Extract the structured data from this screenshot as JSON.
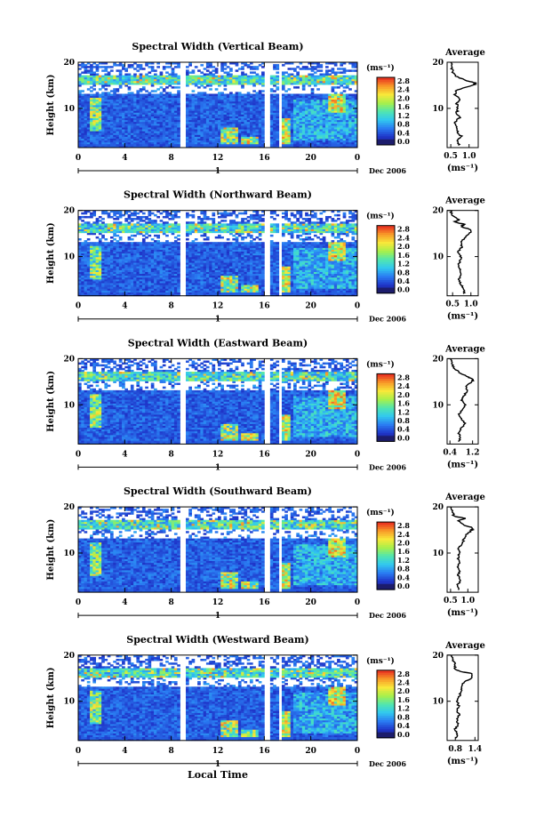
{
  "panels": [
    {
      "title": "Spectral Width (Vertical Beam)",
      "avg_xticks": [
        "0.5",
        "1.0"
      ],
      "avg_xrange": [
        0.4,
        1.25
      ],
      "profile_anchors": [
        [
          2,
          0.72
        ],
        [
          3,
          0.7
        ],
        [
          4,
          0.78
        ],
        [
          5,
          0.68
        ],
        [
          6,
          0.64
        ],
        [
          7,
          0.62
        ],
        [
          8,
          0.74
        ],
        [
          9,
          0.66
        ],
        [
          10,
          0.7
        ],
        [
          11,
          0.66
        ],
        [
          12,
          0.74
        ],
        [
          13,
          0.62
        ],
        [
          14,
          0.66
        ],
        [
          15,
          1.12
        ],
        [
          15.5,
          1.18
        ],
        [
          16,
          0.95
        ],
        [
          17,
          0.62
        ],
        [
          18,
          0.55
        ],
        [
          19,
          0.52
        ],
        [
          20,
          0.5
        ]
      ],
      "seed": 11
    },
    {
      "title": "Spectral Width (Northward Beam)",
      "avg_xticks": [
        "0.5",
        "1.0"
      ],
      "avg_xrange": [
        0.35,
        1.2
      ],
      "profile_anchors": [
        [
          2,
          0.8
        ],
        [
          3,
          0.82
        ],
        [
          4,
          0.72
        ],
        [
          5,
          0.66
        ],
        [
          6,
          0.74
        ],
        [
          7,
          0.7
        ],
        [
          8,
          0.64
        ],
        [
          9,
          0.7
        ],
        [
          10,
          0.72
        ],
        [
          11,
          0.66
        ],
        [
          12,
          0.74
        ],
        [
          13,
          0.72
        ],
        [
          14,
          0.82
        ],
        [
          15,
          0.98
        ],
        [
          15.8,
          1.02
        ],
        [
          16.5,
          0.72
        ],
        [
          17,
          0.82
        ],
        [
          17.5,
          0.55
        ],
        [
          18,
          0.68
        ],
        [
          19,
          0.48
        ],
        [
          20,
          0.46
        ]
      ],
      "seed": 23
    },
    {
      "title": "Spectral Width (Eastward Beam)",
      "avg_xticks": [
        "0.4",
        "1.2"
      ],
      "avg_xrange": [
        0.3,
        1.4
      ],
      "profile_anchors": [
        [
          2,
          0.72
        ],
        [
          3,
          0.76
        ],
        [
          4,
          0.7
        ],
        [
          5,
          0.82
        ],
        [
          6,
          0.92
        ],
        [
          7,
          0.8
        ],
        [
          8,
          0.72
        ],
        [
          9,
          0.86
        ],
        [
          10,
          0.96
        ],
        [
          11,
          0.82
        ],
        [
          12,
          0.9
        ],
        [
          13,
          1.0
        ],
        [
          14,
          0.96
        ],
        [
          15,
          1.18
        ],
        [
          15.5,
          1.22
        ],
        [
          16,
          1.05
        ],
        [
          17,
          0.72
        ],
        [
          18,
          0.55
        ],
        [
          19,
          0.46
        ],
        [
          20,
          0.45
        ]
      ],
      "seed": 37
    },
    {
      "title": "Spectral Width (Southward Beam)",
      "avg_xticks": [
        "0.5",
        "1.0"
      ],
      "avg_xrange": [
        0.4,
        1.3
      ],
      "profile_anchors": [
        [
          2,
          0.74
        ],
        [
          3,
          0.7
        ],
        [
          4,
          0.78
        ],
        [
          5,
          0.72
        ],
        [
          6,
          0.76
        ],
        [
          7,
          0.7
        ],
        [
          8,
          0.76
        ],
        [
          9,
          0.72
        ],
        [
          10,
          0.76
        ],
        [
          11,
          0.74
        ],
        [
          12,
          0.84
        ],
        [
          13,
          0.88
        ],
        [
          14,
          0.96
        ],
        [
          15,
          1.12
        ],
        [
          15.5,
          1.14
        ],
        [
          16,
          0.92
        ],
        [
          17,
          0.72
        ],
        [
          17.5,
          0.92
        ],
        [
          18,
          0.6
        ],
        [
          19,
          0.55
        ],
        [
          20,
          0.52
        ]
      ],
      "seed": 41
    },
    {
      "title": "Spectral Width (Westward Beam)",
      "avg_xticks": [
        "0.8",
        "1.4"
      ],
      "avg_xrange": [
        0.55,
        1.5
      ],
      "profile_anchors": [
        [
          2,
          0.82
        ],
        [
          3,
          0.86
        ],
        [
          4,
          0.8
        ],
        [
          5,
          0.88
        ],
        [
          6,
          0.84
        ],
        [
          7,
          0.92
        ],
        [
          8,
          0.86
        ],
        [
          9,
          0.9
        ],
        [
          10,
          0.86
        ],
        [
          11,
          0.92
        ],
        [
          12,
          0.96
        ],
        [
          13,
          1.0
        ],
        [
          14,
          1.04
        ],
        [
          15,
          1.28
        ],
        [
          16,
          1.32
        ],
        [
          16.5,
          0.92
        ],
        [
          17,
          0.78
        ],
        [
          18,
          0.8
        ],
        [
          19,
          0.72
        ],
        [
          20,
          0.7
        ]
      ],
      "seed": 53
    }
  ],
  "labels": {
    "ylabel": "Height (km)",
    "avg_title": "Average",
    "avg_unit": "(ms⁻¹)",
    "cb_unit": "(ms⁻¹)",
    "date": "Dec 2006",
    "day": "1",
    "xlabel_bottom": "Local Time"
  },
  "chart_data": {
    "type": "heatmap",
    "x_ticks": [
      "0",
      "4",
      "8",
      "12",
      "16",
      "20",
      "0"
    ],
    "x_range_hours": [
      0,
      24
    ],
    "y_ticks": [
      "20",
      "10"
    ],
    "y_range_km": [
      1.5,
      20
    ],
    "colorbar_ticks": [
      "2.8",
      "2.4",
      "2.0",
      "1.6",
      "1.2",
      "0.8",
      "0.4",
      "0.0"
    ],
    "colorbar_range": [
      0.0,
      3.0
    ],
    "data_gaps_hours": [
      [
        8.7,
        9.3
      ],
      [
        16.1,
        16.5
      ],
      [
        17.2,
        17.5
      ]
    ],
    "colormap": [
      "#1c1c6c",
      "#1f35c9",
      "#2a7cf2",
      "#31c8f0",
      "#50e6b0",
      "#a8f04a",
      "#f8e83a",
      "#f89a28",
      "#e82a20"
    ]
  }
}
